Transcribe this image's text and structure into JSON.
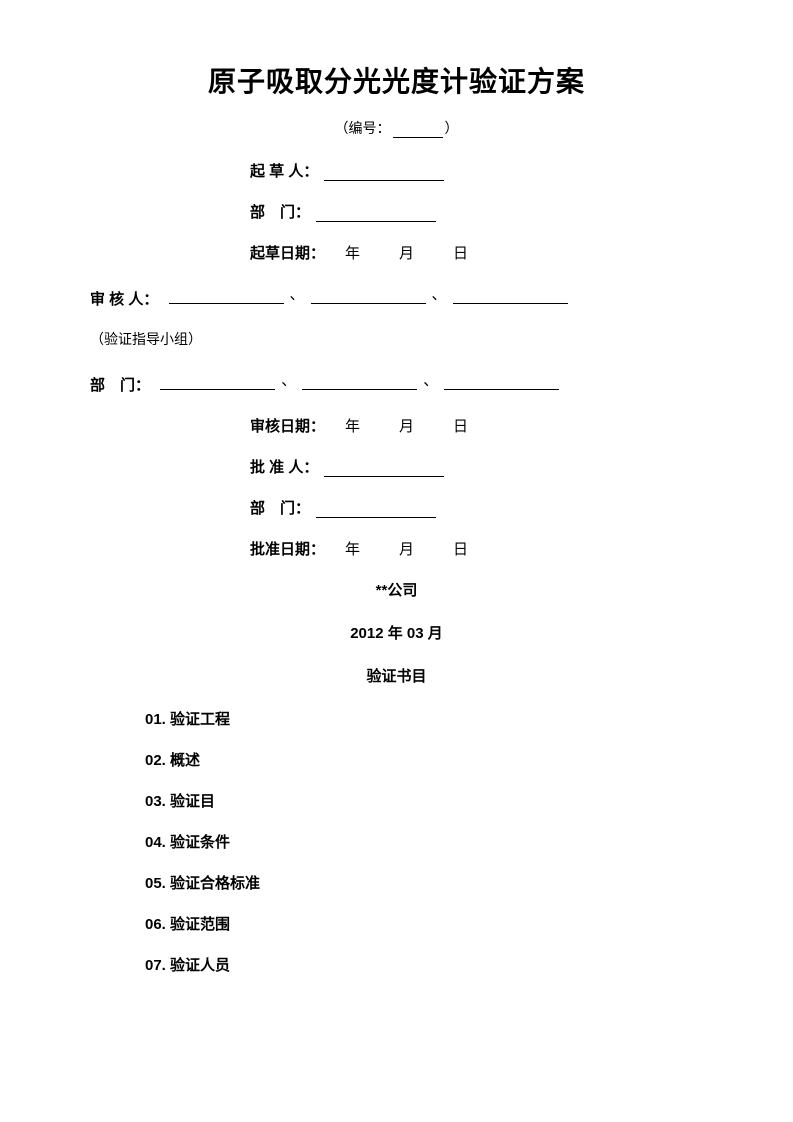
{
  "title": "原子吸取分光光度计验证方案",
  "serial": {
    "prefix": "（编号：",
    "suffix": "）"
  },
  "drafter": {
    "label": "起 草 人："
  },
  "department1": {
    "label": "部　门："
  },
  "draft_date": {
    "label": "起草日期：",
    "value": "年　月　日"
  },
  "reviewer": {
    "label": "审 核 人："
  },
  "group_note": "（验证指导小组）",
  "department2": {
    "label": "部　门："
  },
  "review_date": {
    "label": "审核日期：",
    "value": "年　月　日"
  },
  "approver": {
    "label": "批 准 人："
  },
  "department3": {
    "label": "部　门："
  },
  "approve_date": {
    "label": "批准日期：",
    "value": "年　月　日"
  },
  "company": "**公司",
  "issue_date": "2012 年 03 月",
  "toc_title": "验证书目",
  "toc": [
    "01. 验证工程",
    "02. 概述",
    "03. 验证目",
    "04. 验证条件",
    "05. 验证合格标准",
    "06. 验证范围",
    "07. 验证人员"
  ]
}
